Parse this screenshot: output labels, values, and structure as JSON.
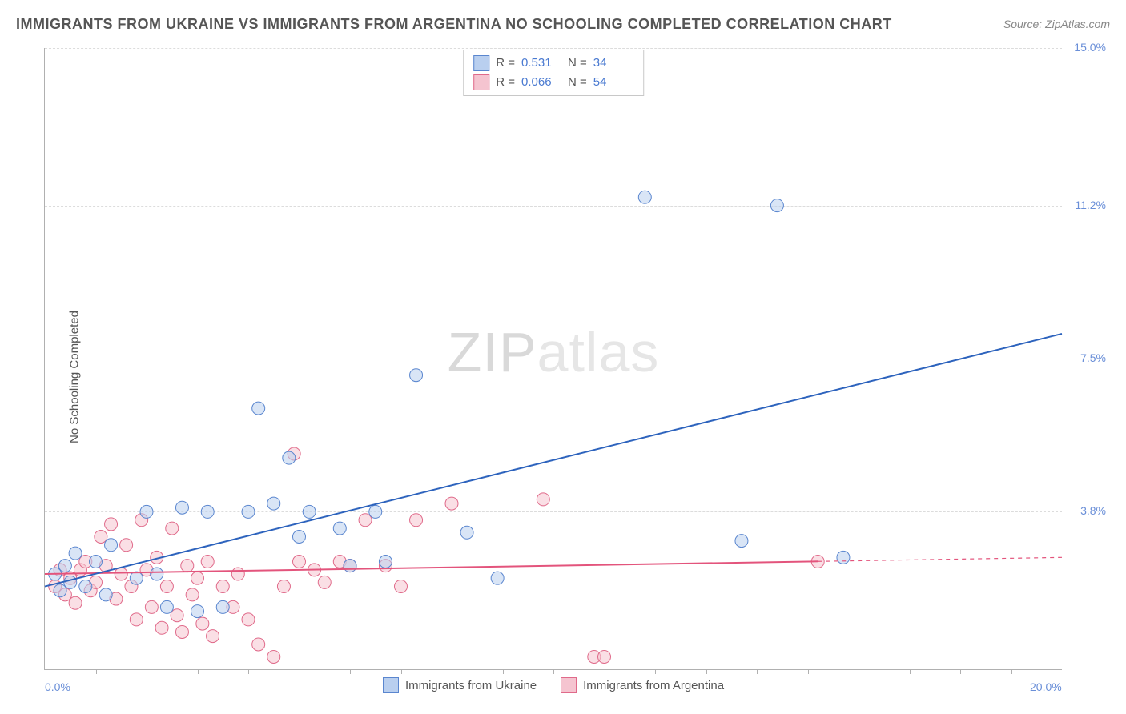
{
  "header": {
    "title": "IMMIGRANTS FROM UKRAINE VS IMMIGRANTS FROM ARGENTINA NO SCHOOLING COMPLETED CORRELATION CHART",
    "source": "Source: ZipAtlas.com"
  },
  "ylabel": "No Schooling Completed",
  "watermark": {
    "bold": "ZIP",
    "light": "atlas"
  },
  "chart": {
    "type": "scatter-with-regression",
    "background_color": "#ffffff",
    "grid_color": "#dcdcdc",
    "axis_color": "#b0b0b0",
    "text_color": "#555555",
    "tick_color": "#6a8fd8",
    "xlim": [
      0,
      20
    ],
    "ylim": [
      0,
      15
    ],
    "yticks": [
      {
        "v": 3.8,
        "label": "3.8%"
      },
      {
        "v": 7.5,
        "label": "7.5%"
      },
      {
        "v": 11.2,
        "label": "11.2%"
      },
      {
        "v": 15.0,
        "label": "15.0%"
      }
    ],
    "xticks_minor": [
      1,
      2,
      3,
      4,
      5,
      6,
      7,
      8,
      9,
      10,
      11,
      12,
      13,
      14,
      15,
      16,
      17,
      18,
      19
    ],
    "x_labels": [
      {
        "v": 0,
        "label": "0.0%"
      },
      {
        "v": 20,
        "label": "20.0%"
      }
    ],
    "marker_radius": 8,
    "marker_opacity": 0.55,
    "line_width": 2,
    "series": {
      "ukraine": {
        "label": "Immigrants from Ukraine",
        "fill": "#b9cfef",
        "stroke": "#5a86cf",
        "line_color": "#2d63bd",
        "r_value": "0.531",
        "n_value": "34",
        "regression": {
          "x1": 0,
          "y1": 2.0,
          "x2": 20,
          "y2": 8.1,
          "data_x_max": 20,
          "dashed_after_data": false
        },
        "points": [
          [
            0.2,
            2.3
          ],
          [
            0.3,
            1.9
          ],
          [
            0.4,
            2.5
          ],
          [
            0.5,
            2.1
          ],
          [
            0.6,
            2.8
          ],
          [
            0.8,
            2.0
          ],
          [
            1.0,
            2.6
          ],
          [
            1.2,
            1.8
          ],
          [
            1.3,
            3.0
          ],
          [
            1.8,
            2.2
          ],
          [
            2.0,
            3.8
          ],
          [
            2.2,
            2.3
          ],
          [
            2.4,
            1.5
          ],
          [
            2.7,
            3.9
          ],
          [
            3.0,
            1.4
          ],
          [
            3.2,
            3.8
          ],
          [
            3.5,
            1.5
          ],
          [
            4.0,
            3.8
          ],
          [
            4.2,
            6.3
          ],
          [
            4.5,
            4.0
          ],
          [
            4.8,
            5.1
          ],
          [
            5.0,
            3.2
          ],
          [
            5.2,
            3.8
          ],
          [
            5.8,
            3.4
          ],
          [
            6.0,
            2.5
          ],
          [
            6.5,
            3.8
          ],
          [
            6.7,
            2.6
          ],
          [
            7.3,
            7.1
          ],
          [
            8.3,
            3.3
          ],
          [
            8.9,
            2.2
          ],
          [
            11.8,
            11.4
          ],
          [
            13.7,
            3.1
          ],
          [
            14.4,
            11.2
          ],
          [
            15.7,
            2.7
          ]
        ]
      },
      "argentina": {
        "label": "Immigrants from Argentina",
        "fill": "#f5c4d0",
        "stroke": "#e06a8a",
        "line_color": "#e3547c",
        "r_value": "0.066",
        "n_value": "54",
        "regression": {
          "x1": 0,
          "y1": 2.3,
          "x2": 20,
          "y2": 2.7,
          "data_x_max": 15.2,
          "dashed_after_data": true
        },
        "points": [
          [
            0.2,
            2.0
          ],
          [
            0.3,
            2.4
          ],
          [
            0.4,
            1.8
          ],
          [
            0.5,
            2.2
          ],
          [
            0.6,
            1.6
          ],
          [
            0.7,
            2.4
          ],
          [
            0.8,
            2.6
          ],
          [
            0.9,
            1.9
          ],
          [
            1.0,
            2.1
          ],
          [
            1.1,
            3.2
          ],
          [
            1.2,
            2.5
          ],
          [
            1.3,
            3.5
          ],
          [
            1.4,
            1.7
          ],
          [
            1.5,
            2.3
          ],
          [
            1.6,
            3.0
          ],
          [
            1.7,
            2.0
          ],
          [
            1.8,
            1.2
          ],
          [
            1.9,
            3.6
          ],
          [
            2.0,
            2.4
          ],
          [
            2.1,
            1.5
          ],
          [
            2.2,
            2.7
          ],
          [
            2.3,
            1.0
          ],
          [
            2.4,
            2.0
          ],
          [
            2.5,
            3.4
          ],
          [
            2.6,
            1.3
          ],
          [
            2.7,
            0.9
          ],
          [
            2.8,
            2.5
          ],
          [
            2.9,
            1.8
          ],
          [
            3.0,
            2.2
          ],
          [
            3.1,
            1.1
          ],
          [
            3.2,
            2.6
          ],
          [
            3.3,
            0.8
          ],
          [
            3.5,
            2.0
          ],
          [
            3.7,
            1.5
          ],
          [
            3.8,
            2.3
          ],
          [
            4.0,
            1.2
          ],
          [
            4.2,
            0.6
          ],
          [
            4.5,
            0.3
          ],
          [
            4.7,
            2.0
          ],
          [
            4.9,
            5.2
          ],
          [
            5.0,
            2.6
          ],
          [
            5.3,
            2.4
          ],
          [
            5.5,
            2.1
          ],
          [
            5.8,
            2.6
          ],
          [
            6.0,
            2.5
          ],
          [
            6.3,
            3.6
          ],
          [
            6.7,
            2.5
          ],
          [
            7.0,
            2.0
          ],
          [
            7.3,
            3.6
          ],
          [
            8.0,
            4.0
          ],
          [
            9.8,
            4.1
          ],
          [
            10.8,
            0.3
          ],
          [
            11.0,
            0.3
          ],
          [
            15.2,
            2.6
          ]
        ]
      }
    }
  },
  "legend_top": {
    "r_label": "R  =",
    "n_label": "N  ="
  }
}
